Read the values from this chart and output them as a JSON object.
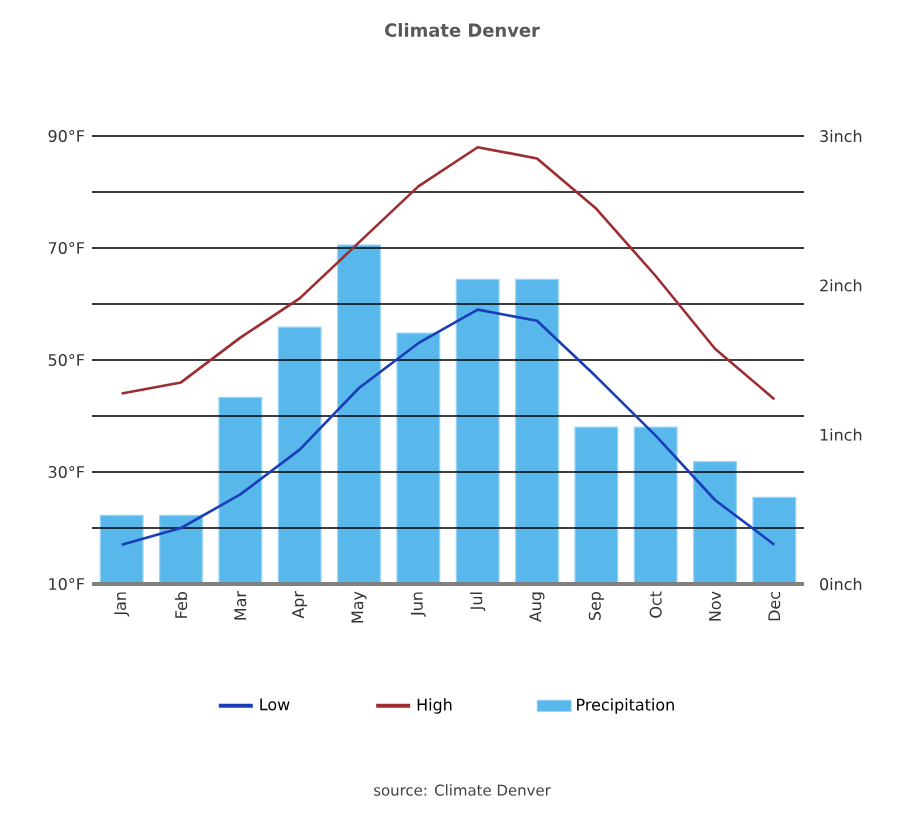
{
  "chart_data": {
    "type": "line",
    "title": "Climate Denver",
    "categories": [
      "Jan",
      "Feb",
      "Mar",
      "Apr",
      "May",
      "Jun",
      "Jul",
      "Aug",
      "Sep",
      "Oct",
      "Nov",
      "Dec"
    ],
    "series": [
      {
        "name": "Low",
        "color": "#1a3eb8",
        "values": [
          17,
          20,
          26,
          34,
          45,
          53,
          59,
          57,
          47,
          36.5,
          25,
          17
        ]
      },
      {
        "name": "High",
        "color": "#9e2d31",
        "values": [
          44,
          46,
          54,
          61,
          71,
          81,
          88,
          86,
          77,
          65,
          52,
          43
        ]
      },
      {
        "name": "Precipitation",
        "type": "bar",
        "axis": "y2",
        "color": "#58b8ec",
        "values": [
          0.46,
          0.46,
          1.25,
          1.72,
          2.27,
          1.68,
          2.04,
          2.04,
          1.05,
          1.05,
          0.82,
          0.58
        ]
      }
    ],
    "ylim": [
      10,
      90
    ],
    "yticks": [
      {
        "value": 10,
        "label": "10°F"
      },
      {
        "value": 20,
        "label": null
      },
      {
        "value": 30,
        "label": "30°F"
      },
      {
        "value": 40,
        "label": null
      },
      {
        "value": 50,
        "label": "50°F"
      },
      {
        "value": 60,
        "label": null
      },
      {
        "value": 70,
        "label": "70°F"
      },
      {
        "value": 80,
        "label": null
      },
      {
        "value": 90,
        "label": "90°F"
      }
    ],
    "y2lim": [
      0,
      3
    ],
    "y2ticks": [
      {
        "value": 0,
        "label": "0inch"
      },
      {
        "value": 1,
        "label": "1inch"
      },
      {
        "value": 2,
        "label": "2inch"
      },
      {
        "value": 3,
        "label": "3inch"
      }
    ],
    "grid": "y",
    "legend": "bottom",
    "annotations": [
      "source: Climate Denver"
    ]
  }
}
